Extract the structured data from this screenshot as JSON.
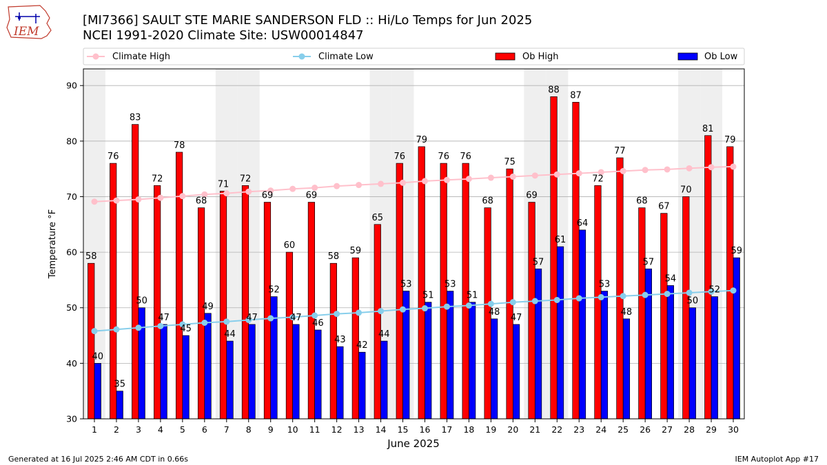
{
  "header": {
    "title_line1": "[MI7366] SAULT STE MARIE SANDERSON FLD :: Hi/Lo Temps for Jun 2025",
    "title_line2": "NCEI 1991-2020 Climate Site: USW00014847",
    "logo_text": "IEM"
  },
  "footer": {
    "generated": "Generated at 16 Jul 2025 2:46 AM CDT in 0.66s",
    "app": "IEM Autoplot App #17"
  },
  "colors": {
    "ob_high": "#ff0000",
    "ob_low": "#0000ff",
    "climate_high": "#ffc0cb",
    "climate_low": "#87ceeb",
    "weekend_band": "#efefef"
  },
  "chart_data": {
    "type": "bar",
    "xlabel": "June 2025",
    "ylabel": "Temperature °F",
    "ylim": [
      30,
      93
    ],
    "yticks": [
      30,
      40,
      50,
      60,
      70,
      80,
      90
    ],
    "grid": "horizontal",
    "legend_position": "top",
    "categories": [
      "1",
      "2",
      "3",
      "4",
      "5",
      "6",
      "7",
      "8",
      "9",
      "10",
      "11",
      "12",
      "13",
      "14",
      "15",
      "16",
      "17",
      "18",
      "19",
      "20",
      "21",
      "22",
      "23",
      "24",
      "25",
      "26",
      "27",
      "28",
      "29",
      "30"
    ],
    "weekend_days": [
      1,
      7,
      8,
      14,
      15,
      21,
      22,
      28,
      29
    ],
    "series": [
      {
        "name": "Ob High",
        "kind": "bar",
        "values": [
          58,
          76,
          83,
          72,
          78,
          68,
          71,
          72,
          69,
          60,
          69,
          58,
          59,
          65,
          76,
          79,
          76,
          76,
          68,
          75,
          69,
          88,
          87,
          72,
          77,
          68,
          67,
          70,
          81,
          79
        ]
      },
      {
        "name": "Ob Low",
        "kind": "bar",
        "values": [
          40,
          35,
          50,
          47,
          45,
          49,
          44,
          47,
          52,
          47,
          46,
          43,
          42,
          44,
          53,
          51,
          53,
          51,
          48,
          47,
          57,
          61,
          64,
          53,
          48,
          57,
          54,
          50,
          52,
          59
        ]
      },
      {
        "name": "Climate High",
        "kind": "line",
        "values": [
          69.1,
          69.3,
          69.5,
          69.8,
          70.1,
          70.4,
          70.6,
          70.9,
          71.1,
          71.4,
          71.6,
          71.9,
          72.1,
          72.3,
          72.5,
          72.8,
          73.0,
          73.2,
          73.4,
          73.6,
          73.8,
          74.0,
          74.2,
          74.4,
          74.6,
          74.8,
          74.9,
          75.1,
          75.3,
          75.4
        ]
      },
      {
        "name": "Climate Low",
        "kind": "line",
        "values": [
          45.8,
          46.1,
          46.4,
          46.7,
          47.0,
          47.3,
          47.5,
          47.8,
          48.1,
          48.3,
          48.6,
          48.9,
          49.1,
          49.4,
          49.7,
          49.9,
          50.2,
          50.4,
          50.7,
          51.0,
          51.2,
          51.4,
          51.7,
          51.9,
          52.1,
          52.3,
          52.5,
          52.7,
          52.9,
          53.1
        ]
      }
    ]
  }
}
